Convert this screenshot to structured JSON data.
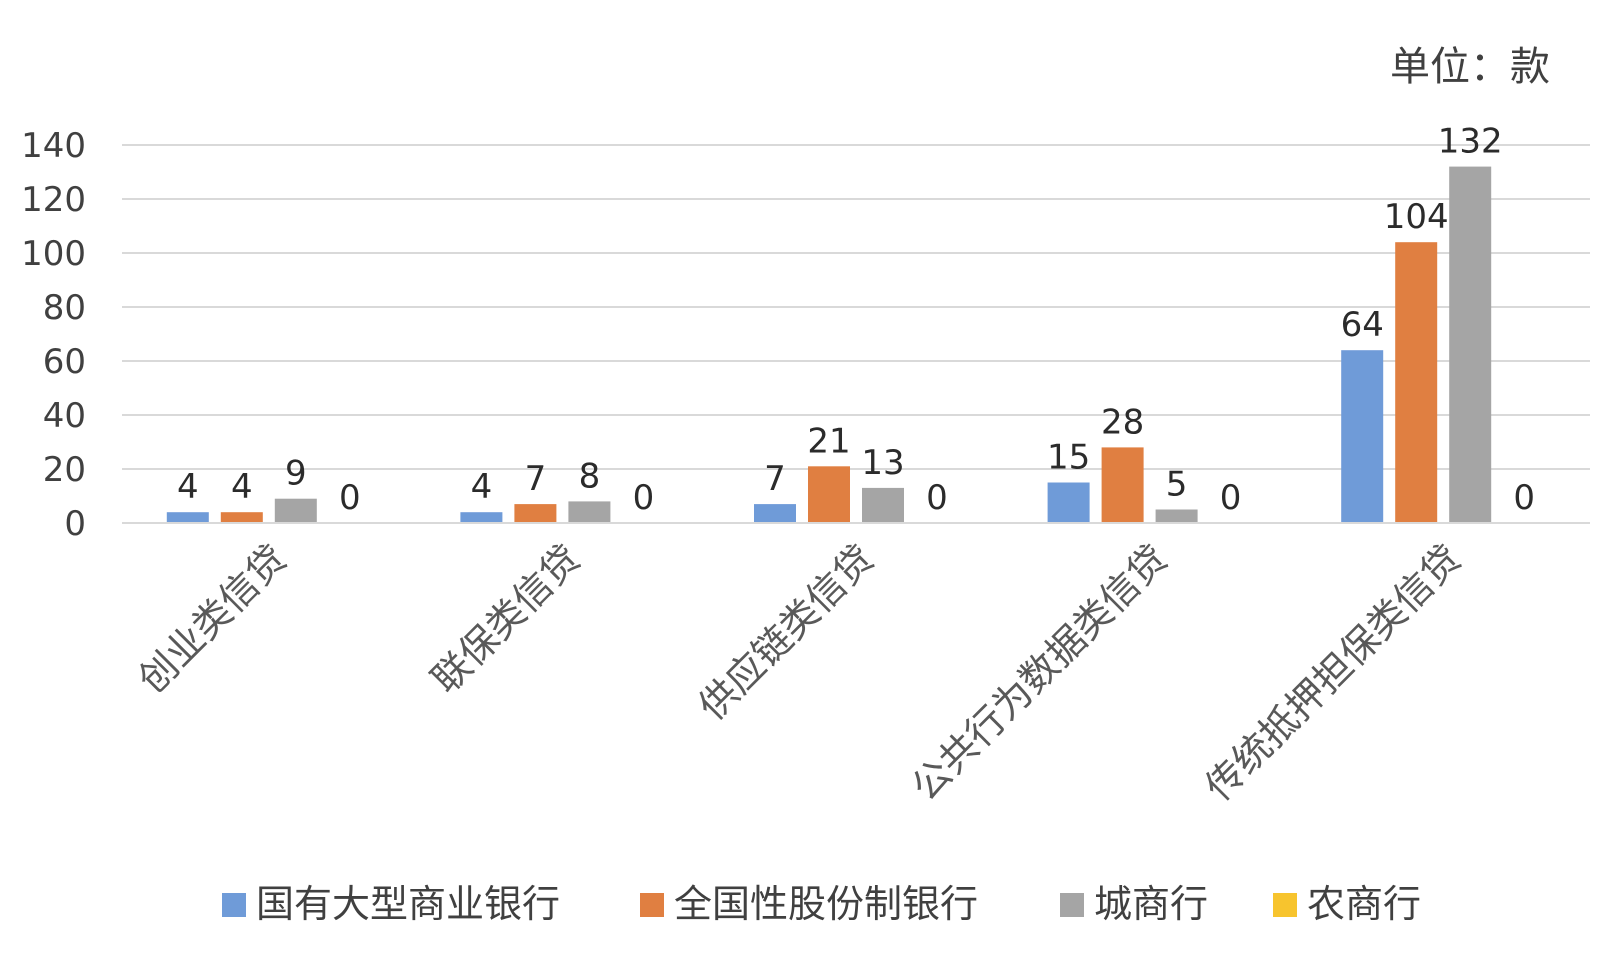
{
  "chart_data": {
    "type": "bar",
    "unit_label": "单位：款",
    "categories": [
      "创业类信贷",
      "联保类信贷",
      "供应链类信贷",
      "公共行为数据类信贷",
      "传统抵押担保类信贷"
    ],
    "series": [
      {
        "name": "国有大型商业银行",
        "color": "#6f9bd8",
        "values": [
          4,
          4,
          7,
          15,
          64
        ]
      },
      {
        "name": "全国性股份制银行",
        "color": "#e07f41",
        "values": [
          4,
          7,
          21,
          28,
          104
        ]
      },
      {
        "name": "城商行",
        "color": "#a5a5a5",
        "values": [
          9,
          8,
          13,
          5,
          132
        ]
      },
      {
        "name": "农商行",
        "color": "#f7c42e",
        "values": [
          0,
          0,
          0,
          0,
          0
        ]
      }
    ],
    "ylim": [
      0,
      140
    ],
    "yticks": [
      0,
      20,
      40,
      60,
      80,
      100,
      120,
      140
    ],
    "grid": true,
    "legend": "bottom"
  }
}
